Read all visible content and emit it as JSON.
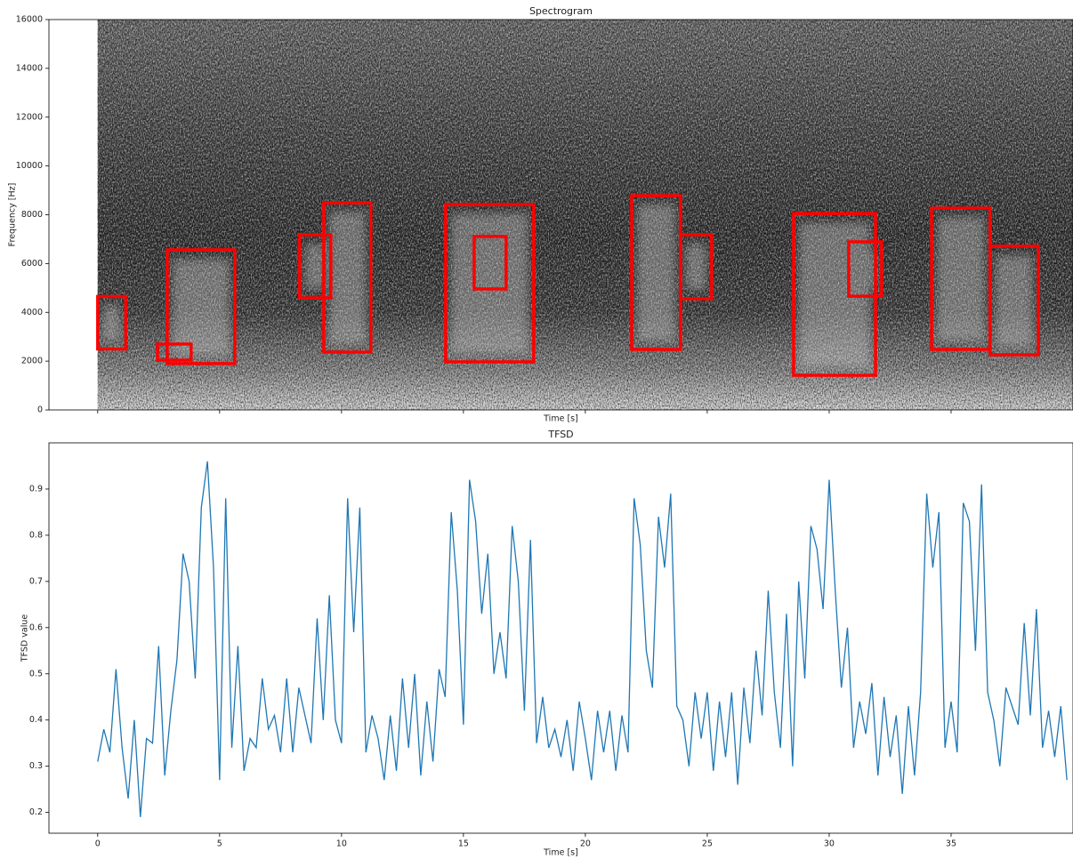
{
  "chart_data": [
    {
      "type": "spectrogram",
      "title": "Spectrogram",
      "xlabel": "Time [s]",
      "ylabel": "Frequency [Hz]",
      "xlim": [
        -2,
        40
      ],
      "xticks": [
        0,
        5,
        10,
        15,
        20,
        25,
        30,
        35
      ],
      "extent": [
        0,
        40
      ],
      "ylim": [
        0,
        16000
      ],
      "yticks": [
        0,
        2000,
        4000,
        6000,
        8000,
        10000,
        12000,
        14000,
        16000
      ],
      "box_color": "#ff0000",
      "boxes": [
        {
          "t": [
            0,
            1.15
          ],
          "f": [
            2500,
            4650
          ]
        },
        {
          "t": [
            2.45,
            3.83
          ],
          "f": [
            2040,
            2700
          ]
        },
        {
          "t": [
            2.85,
            5.62
          ],
          "f": [
            1900,
            6560
          ]
        },
        {
          "t": [
            8.28,
            9.56
          ],
          "f": [
            4590,
            7180
          ]
        },
        {
          "t": [
            9.27,
            11.2
          ],
          "f": [
            2370,
            8490
          ]
        },
        {
          "t": [
            14.27,
            17.88
          ],
          "f": [
            1970,
            8420
          ]
        },
        {
          "t": [
            15.44,
            16.75
          ],
          "f": [
            4960,
            7110
          ]
        },
        {
          "t": [
            21.9,
            23.9
          ],
          "f": [
            2480,
            8780
          ]
        },
        {
          "t": [
            23.9,
            25.18
          ],
          "f": [
            4560,
            7180
          ]
        },
        {
          "t": [
            28.54,
            31.9
          ],
          "f": [
            1420,
            8050
          ]
        },
        {
          "t": [
            30.8,
            32.15
          ],
          "f": [
            4660,
            6890
          ]
        },
        {
          "t": [
            34.2,
            36.6
          ],
          "f": [
            2480,
            8270
          ]
        },
        {
          "t": [
            36.6,
            38.58
          ],
          "f": [
            2260,
            6710
          ]
        }
      ]
    },
    {
      "type": "line",
      "title": "TFSD",
      "xlabel": "Time [s]",
      "ylabel": "TFSD value",
      "color": "#1f77b4",
      "xlim": [
        -2,
        40
      ],
      "xticks": [
        0,
        5,
        10,
        15,
        20,
        25,
        30,
        35
      ],
      "ylim": [
        0.155,
        1.0
      ],
      "yticks": [
        0.2,
        0.3,
        0.4,
        0.5,
        0.6,
        0.7,
        0.8,
        0.9
      ],
      "x": [
        0,
        0.25,
        0.5,
        0.75,
        1,
        1.25,
        1.5,
        1.75,
        2,
        2.25,
        2.5,
        2.75,
        3,
        3.25,
        3.5,
        3.75,
        4,
        4.25,
        4.5,
        4.75,
        5,
        5.25,
        5.5,
        5.75,
        6,
        6.25,
        6.5,
        6.75,
        7,
        7.25,
        7.5,
        7.75,
        8,
        8.25,
        8.5,
        8.75,
        9,
        9.25,
        9.5,
        9.75,
        10,
        10.25,
        10.5,
        10.75,
        11,
        11.25,
        11.5,
        11.75,
        12,
        12.25,
        12.5,
        12.75,
        13,
        13.25,
        13.5,
        13.75,
        14,
        14.25,
        14.5,
        14.75,
        15,
        15.25,
        15.5,
        15.75,
        16,
        16.25,
        16.5,
        16.75,
        17,
        17.25,
        17.5,
        17.75,
        18,
        18.25,
        18.5,
        18.75,
        19,
        19.25,
        19.5,
        19.75,
        20,
        20.25,
        20.5,
        20.75,
        21,
        21.25,
        21.5,
        21.75,
        22,
        22.25,
        22.5,
        22.75,
        23,
        23.25,
        23.5,
        23.75,
        24,
        24.25,
        24.5,
        24.75,
        25,
        25.25,
        25.5,
        25.75,
        26,
        26.25,
        26.5,
        26.75,
        27,
        27.25,
        27.5,
        27.75,
        28,
        28.25,
        28.5,
        28.75,
        29,
        29.25,
        29.5,
        29.75,
        30,
        30.25,
        30.5,
        30.75,
        31,
        31.25,
        31.5,
        31.75,
        32,
        32.25,
        32.5,
        32.75,
        33,
        33.25,
        33.5,
        33.75,
        34,
        34.25,
        34.5,
        34.75,
        35,
        35.25,
        35.5,
        35.75,
        36,
        36.25,
        36.5,
        36.75,
        37,
        37.25,
        37.5,
        37.75,
        38,
        38.25,
        38.5,
        38.75,
        39,
        39.25,
        39.5,
        39.75
      ],
      "values": [
        0.31,
        0.38,
        0.33,
        0.51,
        0.34,
        0.23,
        0.4,
        0.19,
        0.36,
        0.35,
        0.56,
        0.28,
        0.42,
        0.53,
        0.76,
        0.7,
        0.49,
        0.86,
        0.96,
        0.73,
        0.27,
        0.88,
        0.34,
        0.56,
        0.29,
        0.36,
        0.34,
        0.49,
        0.38,
        0.41,
        0.33,
        0.49,
        0.33,
        0.47,
        0.41,
        0.35,
        0.62,
        0.4,
        0.67,
        0.4,
        0.35,
        0.88,
        0.59,
        0.86,
        0.33,
        0.41,
        0.36,
        0.27,
        0.41,
        0.29,
        0.49,
        0.34,
        0.5,
        0.28,
        0.44,
        0.31,
        0.51,
        0.45,
        0.85,
        0.68,
        0.39,
        0.92,
        0.83,
        0.63,
        0.76,
        0.5,
        0.59,
        0.49,
        0.82,
        0.7,
        0.42,
        0.79,
        0.35,
        0.45,
        0.34,
        0.38,
        0.32,
        0.4,
        0.29,
        0.44,
        0.36,
        0.27,
        0.42,
        0.33,
        0.42,
        0.29,
        0.41,
        0.33,
        0.88,
        0.78,
        0.55,
        0.47,
        0.84,
        0.73,
        0.89,
        0.43,
        0.4,
        0.3,
        0.46,
        0.36,
        0.46,
        0.29,
        0.44,
        0.32,
        0.46,
        0.26,
        0.47,
        0.35,
        0.55,
        0.41,
        0.68,
        0.46,
        0.34,
        0.63,
        0.3,
        0.7,
        0.49,
        0.82,
        0.77,
        0.64,
        0.92,
        0.68,
        0.47,
        0.6,
        0.34,
        0.44,
        0.37,
        0.48,
        0.28,
        0.45,
        0.32,
        0.41,
        0.24,
        0.43,
        0.28,
        0.46,
        0.89,
        0.73,
        0.85,
        0.34,
        0.44,
        0.33,
        0.87,
        0.83,
        0.55,
        0.91,
        0.46,
        0.4,
        0.3,
        0.47,
        0.43,
        0.39,
        0.61,
        0.41,
        0.64,
        0.34,
        0.42,
        0.32,
        0.43,
        0.27
      ]
    }
  ]
}
